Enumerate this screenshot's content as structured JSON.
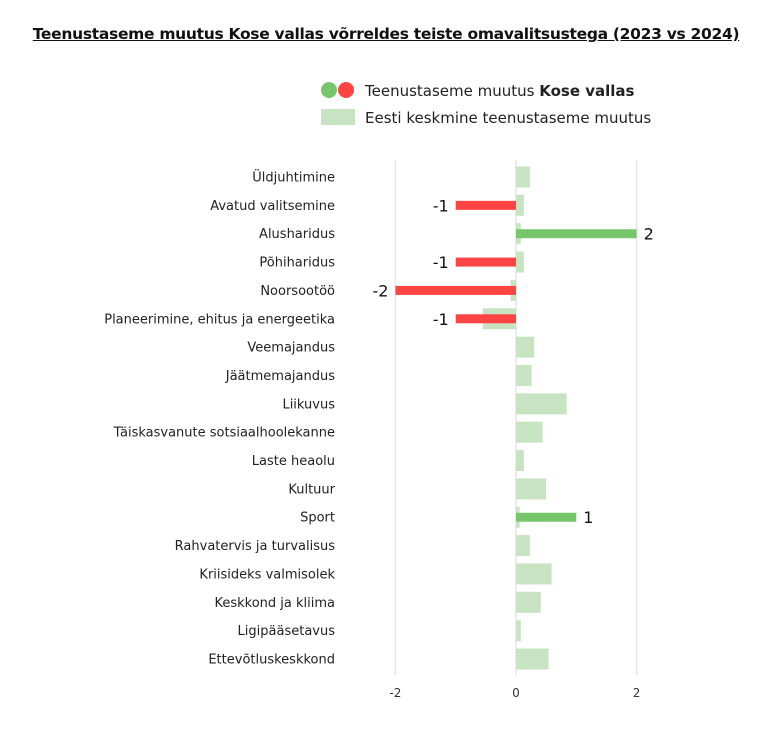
{
  "chart_data": {
    "type": "bar",
    "orientation": "horizontal",
    "title": "Teenustaseme muutus Kose vallas võrreldes teiste omavalitsustega (2023 vs 2024)",
    "categories": [
      "Üldjuhtimine",
      "Avatud valitsemine",
      "Alusharidus",
      "Põhiharidus",
      "Noorsootöö",
      "Planeerimine, ehitus ja energeetika",
      "Veemajandus",
      "Jäätmemajandus",
      "Liikuvus",
      "Täiskasvanute sotsiaalhoolekanne",
      "Laste heaolu",
      "Kultuur",
      "Sport",
      "Rahvatervis ja turvalisus",
      "Kriisideks valmisolek",
      "Keskkond ja kliima",
      "Ligipääsetavus",
      "Ettevõtluskeskkond"
    ],
    "series": [
      {
        "name": "Teenustaseme muutus Kose vallas",
        "name_prefix": "Teenustaseme muutus ",
        "name_bold": "Kose vallas",
        "values": [
          0,
          -1,
          2,
          -1,
          -2,
          -1,
          0,
          0,
          0,
          0,
          0,
          0,
          1,
          0,
          0,
          0,
          0,
          0
        ],
        "colors": {
          "positive": "#77c66b",
          "negative": "#ff4444"
        }
      },
      {
        "name": "Eesti keskmine teenustaseme muutus",
        "values": [
          0.23,
          0.13,
          0.08,
          0.13,
          -0.09,
          -0.55,
          0.3,
          0.26,
          0.84,
          0.44,
          0.13,
          0.5,
          0.06,
          0.23,
          0.59,
          0.41,
          0.08,
          0.54
        ],
        "color": "#c8e3c2"
      }
    ],
    "xticks": [
      -2,
      0,
      2
    ],
    "xlim": [
      -3,
      3
    ],
    "grid": true,
    "legend_position": "top"
  }
}
